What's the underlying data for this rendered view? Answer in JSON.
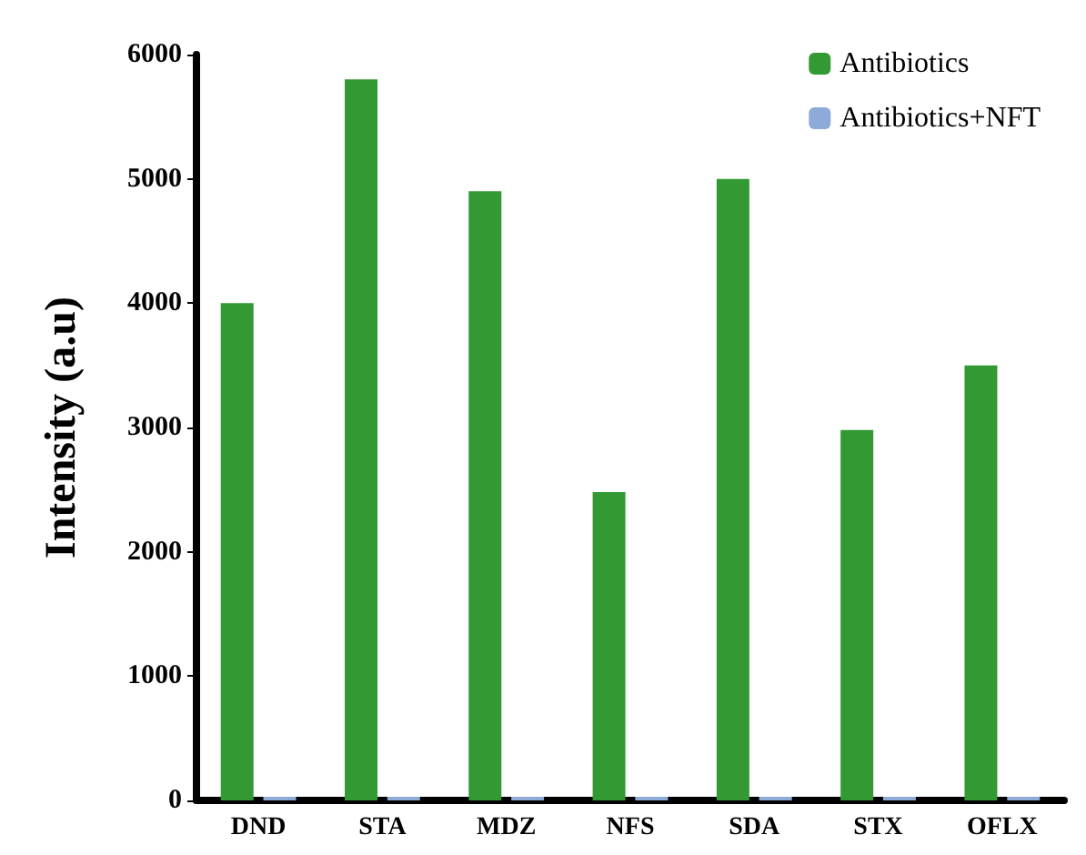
{
  "chart_data": {
    "type": "bar",
    "ylabel": "Intensity (a.u)",
    "categories": [
      "DND",
      "STA",
      "MDZ",
      "NFS",
      "SDA",
      "STX",
      "OFLX"
    ],
    "series": [
      {
        "name": "Antibiotics",
        "color": "#339933",
        "values": [
          4000,
          5800,
          4900,
          2480,
          5000,
          2980,
          3500
        ]
      },
      {
        "name": "Antibiotics+NFT",
        "color": "#8eaad8",
        "values": [
          30,
          30,
          30,
          30,
          30,
          30,
          30
        ]
      }
    ],
    "ylim": [
      0,
      6000
    ],
    "yticks": [
      0,
      1000,
      2000,
      3000,
      4000,
      5000,
      6000
    ],
    "grid": false,
    "legend": "top right"
  }
}
